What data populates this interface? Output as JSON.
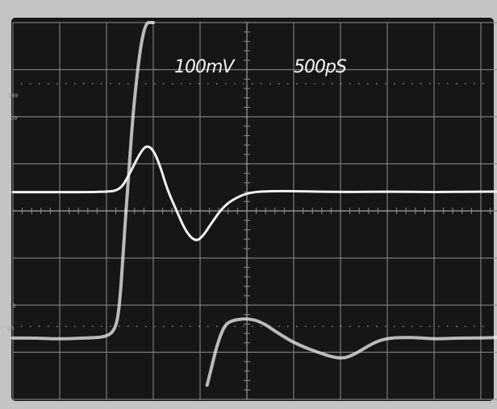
{
  "chart_data": {
    "type": "line",
    "screen": {
      "bezel_color": "#c4c4c4",
      "screen_color": "#161616",
      "trace_color": "#f2f2f2",
      "grid_color": "#8c8c8c"
    },
    "grid": true,
    "divisions": {
      "x": 10,
      "y": 8
    },
    "readouts": {
      "volts_per_div": "100mV",
      "time_per_div": "500pS"
    },
    "graticule_labels": {
      "pct_100": "100",
      "pct_90": "90",
      "pct_10": "10",
      "pct_0": "0%"
    },
    "xlim": [
      0,
      10.5
    ],
    "ylim": [
      0,
      8
    ],
    "series": [
      {
        "x": [
          0.0,
          1.0,
          2.0,
          2.3,
          2.5,
          2.7,
          2.85,
          3.0,
          3.15,
          3.3,
          3.5,
          3.7,
          3.9,
          4.05,
          4.25,
          4.5,
          4.8,
          5.1,
          5.5,
          6.0,
          7.0,
          8.0,
          9.0,
          10.0,
          10.5
        ],
        "y": [
          4.4,
          4.4,
          4.4,
          4.45,
          4.8,
          5.2,
          5.4,
          5.3,
          4.95,
          4.45,
          4.0,
          3.55,
          3.35,
          3.45,
          3.75,
          4.1,
          4.3,
          4.4,
          4.42,
          4.42,
          4.4,
          4.41,
          4.4,
          4.41,
          4.41
        ]
      },
      {
        "x": [
          0.0,
          0.5,
          1.0,
          1.5,
          2.0,
          2.2,
          2.28,
          2.35,
          2.45,
          2.6,
          2.8,
          3.0
        ],
        "y": [
          1.3,
          1.3,
          1.28,
          1.3,
          1.32,
          1.5,
          2.0,
          3.0,
          4.5,
          6.5,
          8.0,
          8.0
        ]
      },
      {
        "x": [
          4.15,
          4.25,
          4.35,
          4.45,
          4.55,
          4.7,
          5.0,
          5.3,
          5.6,
          6.0,
          6.5,
          7.0,
          7.3,
          7.7,
          8.0,
          8.5,
          9.0,
          9.5,
          10.0,
          10.5
        ],
        "y": [
          0.3,
          0.7,
          1.1,
          1.4,
          1.6,
          1.68,
          1.72,
          1.65,
          1.45,
          1.2,
          1.0,
          0.85,
          0.95,
          1.2,
          1.3,
          1.32,
          1.28,
          1.3,
          1.3,
          1.32
        ]
      }
    ]
  }
}
